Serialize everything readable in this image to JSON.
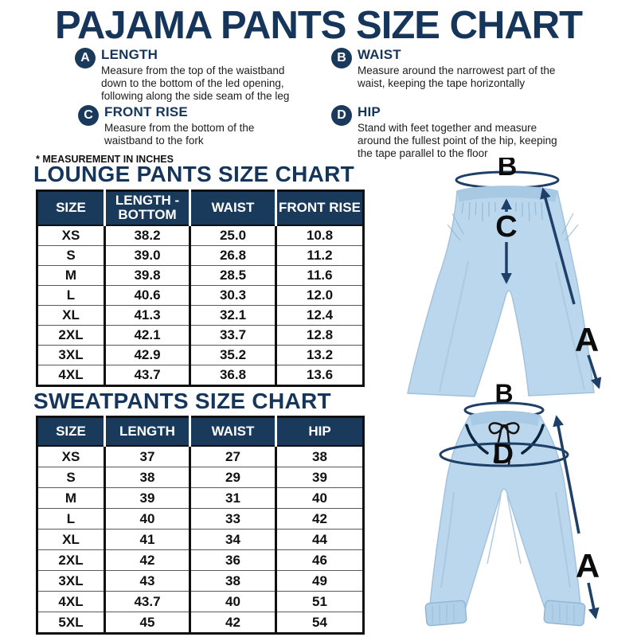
{
  "title": "PAJAMA PANTS SIZE CHART",
  "note": "* MEASUREMENT IN INCHES",
  "definitions": [
    {
      "letter": "A",
      "term": "LENGTH",
      "desc": "Measure from the top of the waistband down to the bottom of the led opening, following along the side seam of the leg"
    },
    {
      "letter": "B",
      "term": "WAIST",
      "desc": "Measure around the narrowest part of the waist, keeping the tape horizontally"
    },
    {
      "letter": "C",
      "term": "FRONT RISE",
      "desc": "Measure from the bottom of the waistband to the fork"
    },
    {
      "letter": "D",
      "term": "HIP",
      "desc": "Stand with feet together and measure around the fullest point of the hip, keeping the tape parallel to the floor"
    }
  ],
  "chart_data": [
    {
      "type": "table",
      "title": "LOUNGE PANTS SIZE CHART",
      "columns": [
        "SIZE",
        "LENGTH - BOTTOM",
        "WAIST",
        "FRONT RISE"
      ],
      "rows": [
        [
          "XS",
          "38.2",
          "25.0",
          "10.8"
        ],
        [
          "S",
          "39.0",
          "26.8",
          "11.2"
        ],
        [
          "M",
          "39.8",
          "28.5",
          "11.6"
        ],
        [
          "L",
          "40.6",
          "30.3",
          "12.0"
        ],
        [
          "XL",
          "41.3",
          "32.1",
          "12.4"
        ],
        [
          "2XL",
          "42.1",
          "33.7",
          "12.8"
        ],
        [
          "3XL",
          "42.9",
          "35.2",
          "13.2"
        ],
        [
          "4XL",
          "43.7",
          "36.8",
          "13.6"
        ]
      ]
    },
    {
      "type": "table",
      "title": "SWEATPANTS SIZE CHART",
      "columns": [
        "SIZE",
        "LENGTH",
        "WAIST",
        "HIP"
      ],
      "rows": [
        [
          "XS",
          "37",
          "27",
          "38"
        ],
        [
          "S",
          "38",
          "29",
          "39"
        ],
        [
          "M",
          "39",
          "31",
          "40"
        ],
        [
          "L",
          "40",
          "33",
          "42"
        ],
        [
          "XL",
          "41",
          "34",
          "44"
        ],
        [
          "2XL",
          "42",
          "36",
          "46"
        ],
        [
          "3XL",
          "43",
          "38",
          "49"
        ],
        [
          "4XL",
          "43.7",
          "40",
          "51"
        ],
        [
          "5XL",
          "45",
          "42",
          "54"
        ]
      ]
    }
  ],
  "illustrations": {
    "lounge_pants": {
      "label_length": "A",
      "label_waist": "B",
      "label_front_rise": "C"
    },
    "sweatpants": {
      "label_length": "A",
      "label_waist": "B",
      "label_hip": "D"
    }
  },
  "colors": {
    "navy": "#1a3a5c",
    "arrow_navy": "#1e4068",
    "pants_blue": "#bad7ed",
    "text_black": "#111111",
    "white": "#ffffff"
  }
}
